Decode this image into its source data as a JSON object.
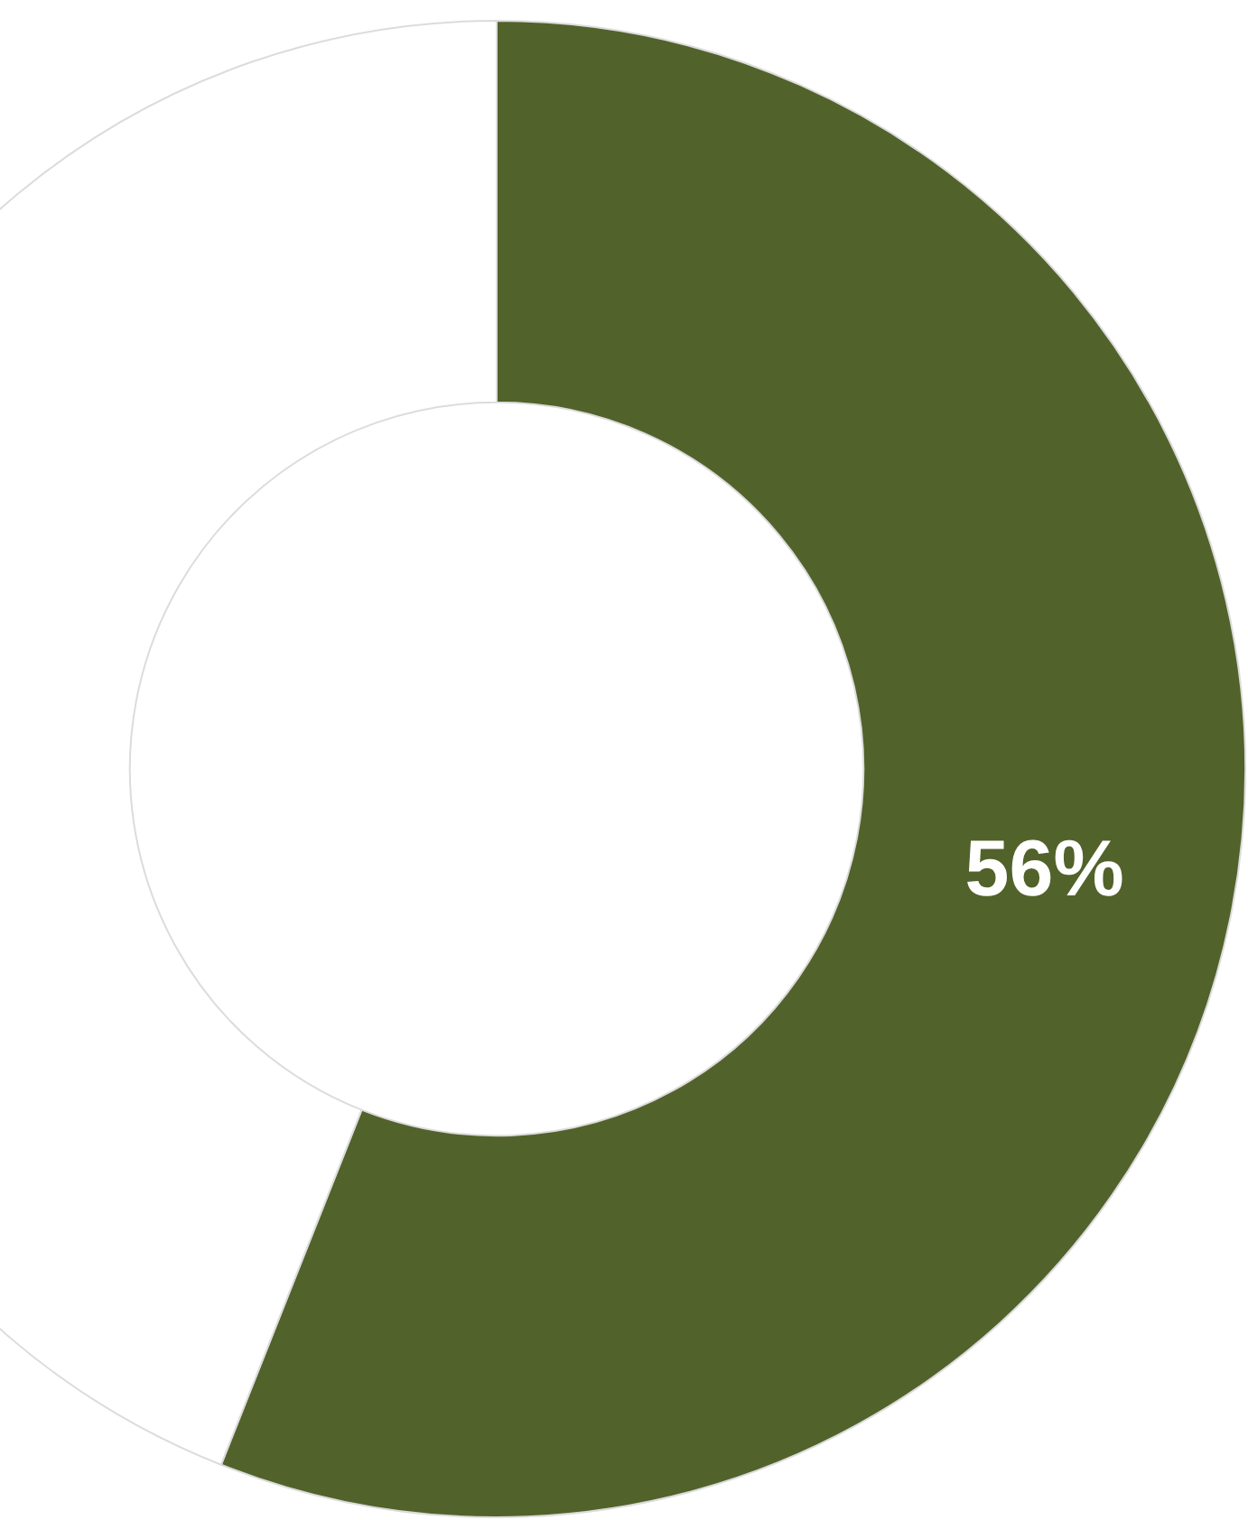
{
  "chart_data": {
    "type": "donut",
    "categories": [
      null,
      null
    ],
    "values": [
      56,
      44
    ],
    "colors": [
      "#52622b",
      "#ffffff"
    ],
    "value_labels": [
      "56%",
      null
    ]
  }
}
